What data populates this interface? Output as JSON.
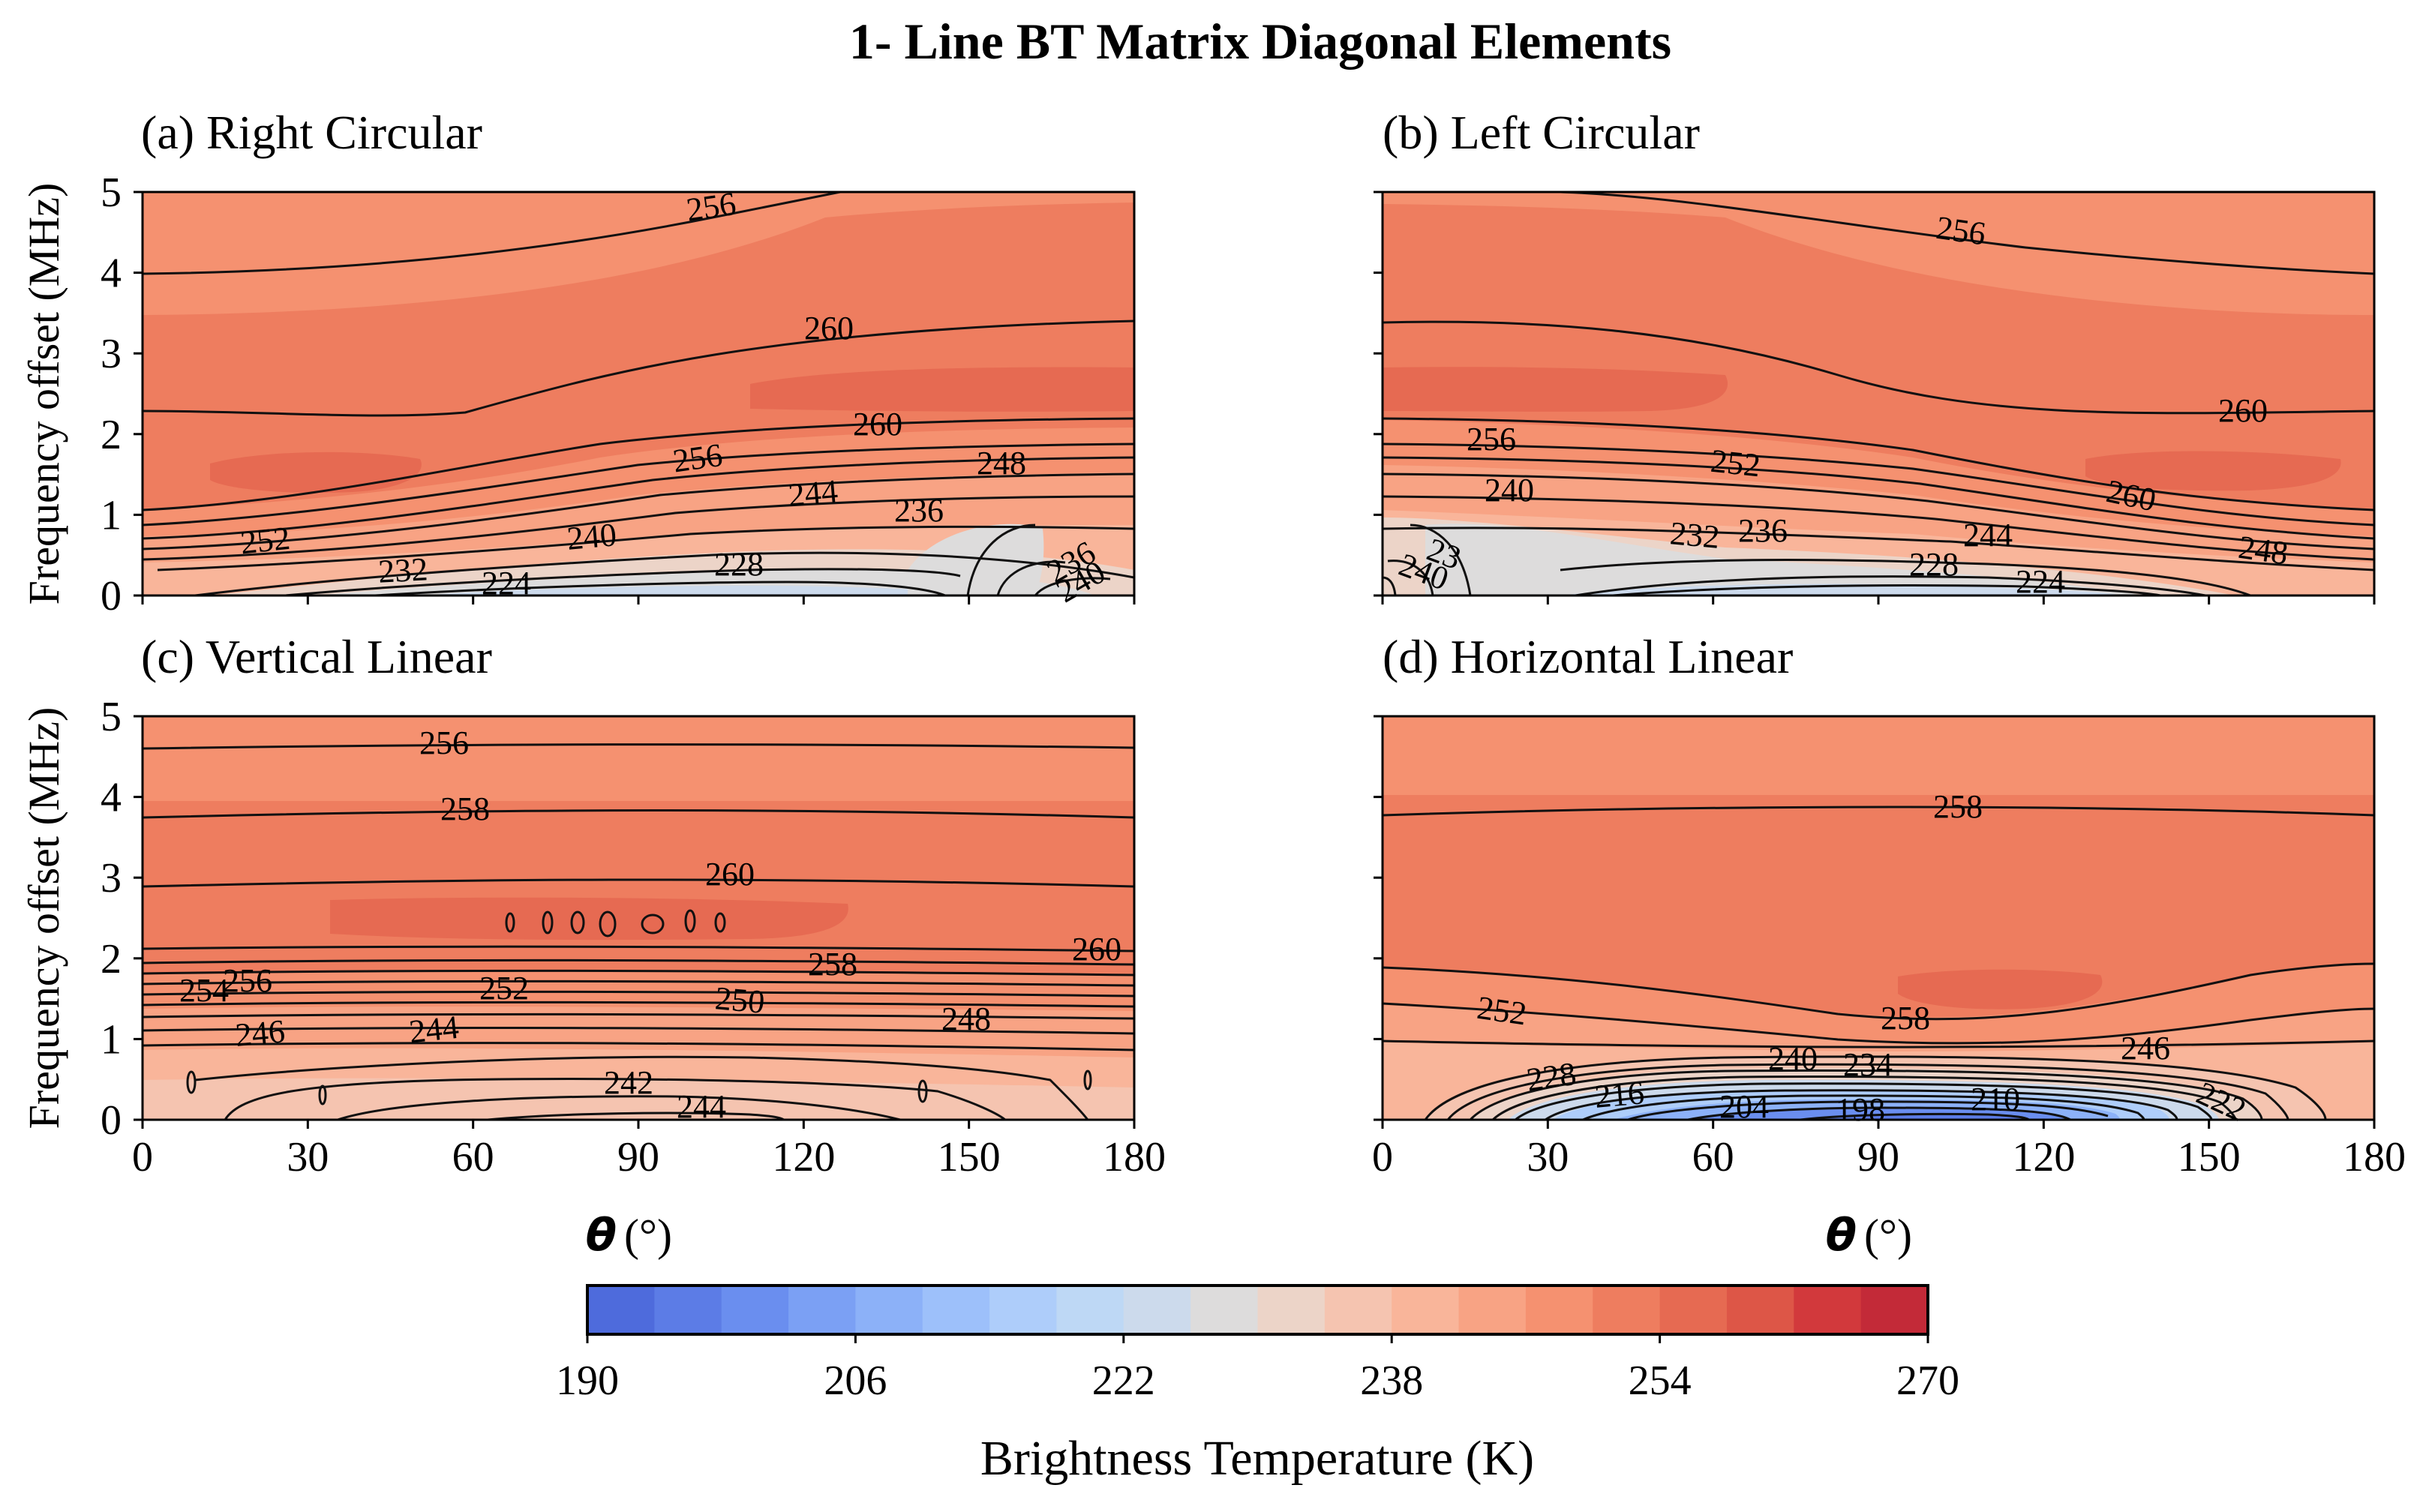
{
  "chart_data": {
    "type": "heatmap",
    "title": "1- Line BT Matrix Diagonal Elements",
    "shared_axes": {
      "xlabel_symbol": "θ",
      "xlabel_unit": "(°)",
      "ylabel": "Frequency offset (MHz)",
      "xlim": [
        0,
        180
      ],
      "ylim": [
        0,
        5
      ],
      "xticks": [
        0,
        30,
        60,
        90,
        120,
        150,
        180
      ],
      "yticks": [
        0,
        1,
        2,
        3,
        4,
        5
      ]
    },
    "colorbar": {
      "label": "Brightness Temperature (K)",
      "range": [
        190,
        270
      ],
      "step": 4,
      "ticks": [
        190,
        206,
        222,
        238,
        254,
        270
      ],
      "colors": [
        "#4e6bdc",
        "#5c7ce6",
        "#6a8eef",
        "#7ba0f4",
        "#8cb1f8",
        "#9dc0fa",
        "#aecdfa",
        "#bed8f5",
        "#ccdaec",
        "#dddcdc",
        "#ecd4c8",
        "#f5c4b0",
        "#f9b59a",
        "#f8a384",
        "#f59170",
        "#ee7d5f",
        "#e66a52",
        "#dd5647",
        "#d2393c",
        "#c32a38"
      ]
    },
    "panels": [
      {
        "label": "(a) Right Circular",
        "contour_labels": [
          "256",
          "260",
          "260",
          "256",
          "248",
          "244",
          "236",
          "252",
          "240",
          "228",
          "232",
          "224",
          "236",
          "240"
        ]
      },
      {
        "label": "(b) Left Circular",
        "contour_labels": [
          "256",
          "260",
          "256",
          "252",
          "240",
          "260",
          "232",
          "236",
          "244",
          "248",
          "228",
          "224",
          "23",
          "240"
        ]
      },
      {
        "label": "(c) Vertical Linear",
        "contour_labels": [
          "256",
          "258",
          "260",
          "260",
          "258",
          "254",
          "256",
          "252",
          "250",
          "248",
          "246",
          "244",
          "242",
          "244"
        ]
      },
      {
        "label": "(d) Horizontal Linear",
        "contour_labels": [
          "258",
          "252",
          "258",
          "246",
          "240",
          "234",
          "228",
          "216",
          "204",
          "198",
          "210",
          "222"
        ]
      }
    ]
  }
}
